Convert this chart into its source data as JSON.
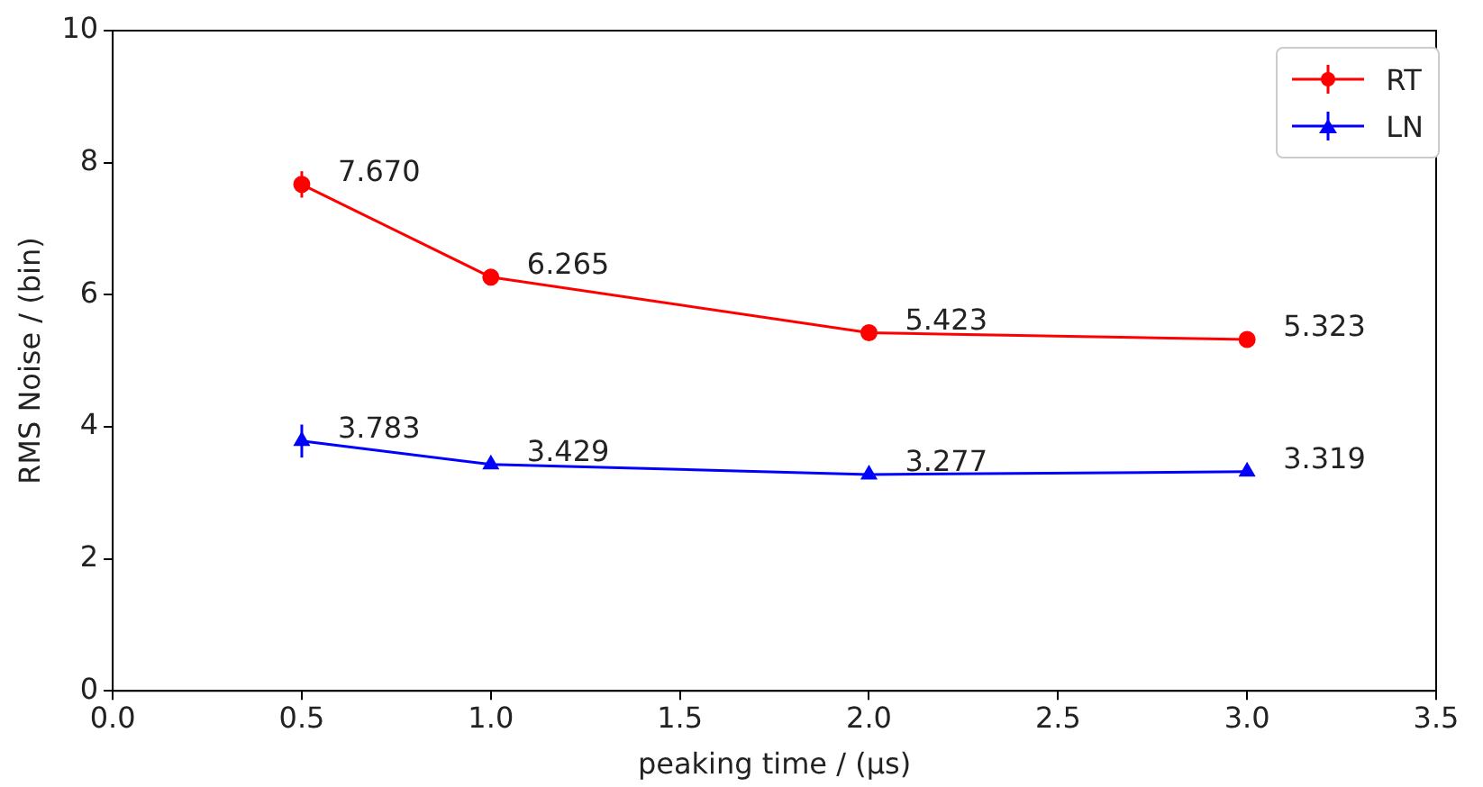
{
  "chart_data": {
    "type": "line",
    "xlabel": "peaking time / (μs)",
    "ylabel": "RMS Noise / (bin)",
    "x": [
      0.5,
      1.0,
      2.0,
      3.0
    ],
    "series": [
      {
        "name": "RT",
        "color": "#ff0000",
        "marker": "circle",
        "values": [
          7.67,
          6.265,
          5.423,
          5.323
        ],
        "errors": [
          0.2,
          0.1,
          0.08,
          0.08
        ],
        "value_labels": [
          "7.670",
          "6.265",
          "5.423",
          "5.323"
        ]
      },
      {
        "name": "LN",
        "color": "#0000ff",
        "marker": "triangle",
        "values": [
          3.783,
          3.429,
          3.277,
          3.319
        ],
        "errors": [
          0.25,
          0.06,
          0.06,
          0.06
        ],
        "value_labels": [
          "3.783",
          "3.429",
          "3.277",
          "3.319"
        ]
      }
    ],
    "xlim": [
      0,
      3.5
    ],
    "xticks": [
      {
        "value": 0,
        "label": "0.0"
      },
      {
        "value": 0.5,
        "label": "0.5"
      },
      {
        "value": 1,
        "label": "1.0"
      },
      {
        "value": 1.5,
        "label": "1.5"
      },
      {
        "value": 2,
        "label": "2.0"
      },
      {
        "value": 2.5,
        "label": "2.5"
      },
      {
        "value": 3,
        "label": "3.0"
      },
      {
        "value": 3.5,
        "label": "3.5"
      }
    ],
    "ylim": [
      0,
      10
    ],
    "yticks": [
      0,
      2,
      4,
      6,
      8,
      10
    ],
    "grid": false,
    "legend": "top right",
    "line_style": "solid"
  }
}
